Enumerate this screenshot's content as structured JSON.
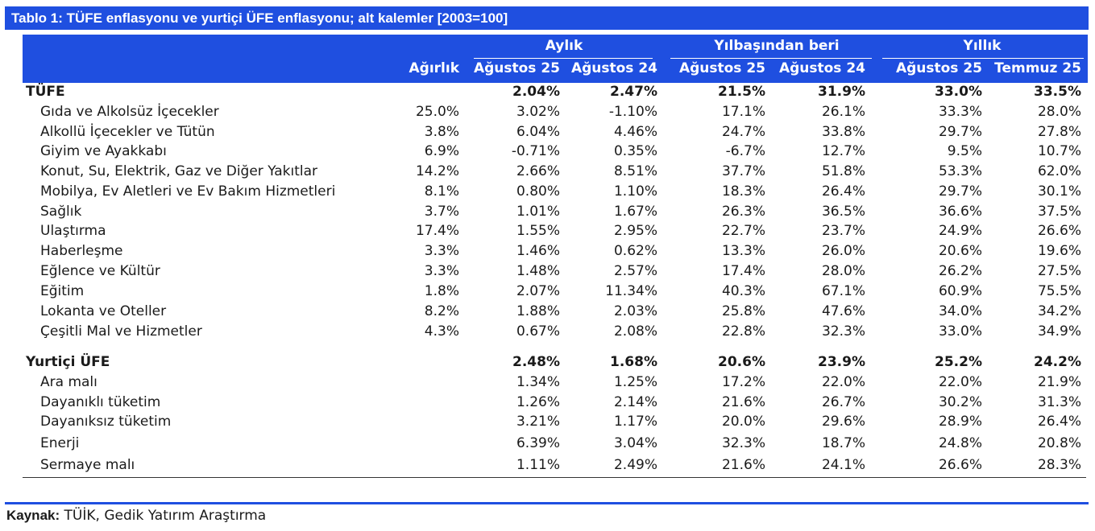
{
  "title": "Tablo 1: TÜFE enflasyonu ve yurtiçi ÜFE enflasyonu; alt kalemler [2003=100]",
  "groups": {
    "monthly": "Aylık",
    "ytd": "Yılbaşından beri",
    "annual": "Yıllık"
  },
  "columns": [
    "Ağırlık",
    "Ağustos 25",
    "Ağustos 24",
    "Ağustos 25",
    "Ağustos 24",
    "Ağustos 25",
    "Temmuz 25"
  ],
  "tufe": {
    "total": {
      "label": "TÜFE",
      "values": [
        "",
        "2.04%",
        "2.47%",
        "21.5%",
        "31.9%",
        "33.0%",
        "33.5%"
      ]
    },
    "rows": [
      {
        "label": "Gıda ve Alkolsüz İçecekler",
        "values": [
          "25.0%",
          "3.02%",
          "-1.10%",
          "17.1%",
          "26.1%",
          "33.3%",
          "28.0%"
        ]
      },
      {
        "label": "Alkollü İçecekler ve Tütün",
        "values": [
          "3.8%",
          "6.04%",
          "4.46%",
          "24.7%",
          "33.8%",
          "29.7%",
          "27.8%"
        ]
      },
      {
        "label": "Giyim ve Ayakkabı",
        "values": [
          "6.9%",
          "-0.71%",
          "0.35%",
          "-6.7%",
          "12.7%",
          "9.5%",
          "10.7%"
        ]
      },
      {
        "label": "Konut, Su, Elektrik, Gaz ve Diğer Yakıtlar",
        "values": [
          "14.2%",
          "2.66%",
          "8.51%",
          "37.7%",
          "51.8%",
          "53.3%",
          "62.0%"
        ]
      },
      {
        "label": "Mobilya, Ev Aletleri ve Ev Bakım Hizmetleri",
        "values": [
          "8.1%",
          "0.80%",
          "1.10%",
          "18.3%",
          "26.4%",
          "29.7%",
          "30.1%"
        ]
      },
      {
        "label": "Sağlık",
        "values": [
          "3.7%",
          "1.01%",
          "1.67%",
          "26.3%",
          "36.5%",
          "36.6%",
          "37.5%"
        ]
      },
      {
        "label": "Ulaştırma",
        "values": [
          "17.4%",
          "1.55%",
          "2.95%",
          "22.7%",
          "23.7%",
          "24.9%",
          "26.6%"
        ]
      },
      {
        "label": "Haberleşme",
        "values": [
          "3.3%",
          "1.46%",
          "0.62%",
          "13.3%",
          "26.0%",
          "20.6%",
          "19.6%"
        ]
      },
      {
        "label": "Eğlence ve Kültür",
        "values": [
          "3.3%",
          "1.48%",
          "2.57%",
          "17.4%",
          "28.0%",
          "26.2%",
          "27.5%"
        ]
      },
      {
        "label": "Eğitim",
        "values": [
          "1.8%",
          "2.07%",
          "11.34%",
          "40.3%",
          "67.1%",
          "60.9%",
          "75.5%"
        ]
      },
      {
        "label": "Lokanta ve Oteller",
        "values": [
          "8.2%",
          "1.88%",
          "2.03%",
          "25.8%",
          "47.6%",
          "34.0%",
          "34.2%"
        ]
      },
      {
        "label": "Çeşitli Mal ve Hizmetler",
        "values": [
          "4.3%",
          "0.67%",
          "2.08%",
          "22.8%",
          "32.3%",
          "33.0%",
          "34.9%"
        ]
      }
    ]
  },
  "ufe": {
    "total": {
      "label": "Yurtiçi ÜFE",
      "values": [
        "",
        "2.48%",
        "1.68%",
        "20.6%",
        "23.9%",
        "25.2%",
        "24.2%"
      ]
    },
    "rows": [
      {
        "label": "Ara malı",
        "values": [
          "",
          "1.34%",
          "1.25%",
          "17.2%",
          "22.0%",
          "22.0%",
          "21.9%"
        ]
      },
      {
        "label": "Dayanıklı tüketim",
        "values": [
          "",
          "1.26%",
          "2.14%",
          "21.6%",
          "26.7%",
          "30.2%",
          "31.3%"
        ]
      },
      {
        "label": "Dayanıksız tüketim",
        "values": [
          "",
          "3.21%",
          "1.17%",
          "20.0%",
          "29.6%",
          "28.9%",
          "26.4%"
        ]
      },
      {
        "label": "Enerji",
        "values": [
          "",
          "6.39%",
          "3.04%",
          "32.3%",
          "18.7%",
          "24.8%",
          "20.8%"
        ]
      },
      {
        "label": "Sermaye malı",
        "values": [
          "",
          "1.11%",
          "2.49%",
          "21.6%",
          "24.1%",
          "26.6%",
          "28.3%"
        ]
      }
    ]
  },
  "source": {
    "prefix": "Kaynak:",
    "text": " TÜİK, Gedik Yatırım Araştırma"
  },
  "colors": {
    "header_bg": "#1f4fe0",
    "header_text": "#ffffff"
  }
}
